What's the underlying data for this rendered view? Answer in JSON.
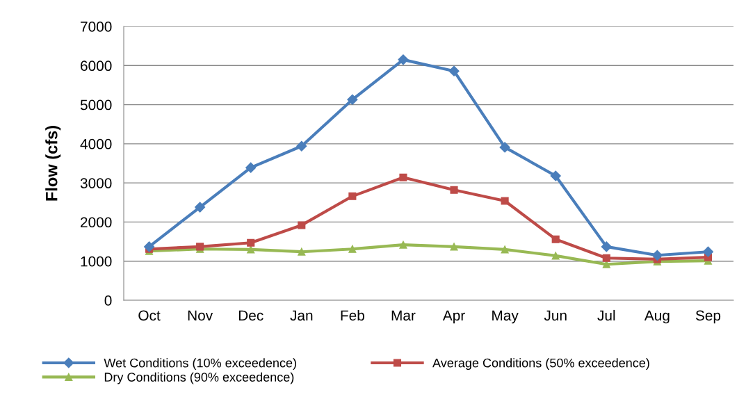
{
  "chart_data": {
    "type": "line",
    "ylabel": "Flow (cfs)",
    "categories": [
      "Oct",
      "Nov",
      "Dec",
      "Jan",
      "Feb",
      "Mar",
      "Apr",
      "May",
      "Jun",
      "Jul",
      "Aug",
      "Sep"
    ],
    "series": [
      {
        "name": "Wet Conditions (10% exceedence)",
        "color": "#4a7ebb",
        "marker": "diamond",
        "values": [
          1370,
          2380,
          3390,
          3940,
          5130,
          6150,
          5860,
          3910,
          3180,
          1370,
          1150,
          1240
        ]
      },
      {
        "name": "Average Conditions (50% exceedence)",
        "color": "#be4b48",
        "marker": "square",
        "values": [
          1310,
          1370,
          1470,
          1920,
          2660,
          3140,
          2820,
          2540,
          1560,
          1080,
          1050,
          1100
        ]
      },
      {
        "name": "Dry Conditions (90% exceedence)",
        "color": "#98b954",
        "marker": "triangle",
        "values": [
          1260,
          1310,
          1300,
          1240,
          1310,
          1420,
          1370,
          1300,
          1140,
          920,
          990,
          1010
        ]
      }
    ],
    "ylim": [
      0,
      7000
    ],
    "yticks": [
      0,
      1000,
      2000,
      3000,
      4000,
      5000,
      6000,
      7000
    ],
    "grid": "y",
    "legend": "bottom",
    "line_style": "solid"
  }
}
